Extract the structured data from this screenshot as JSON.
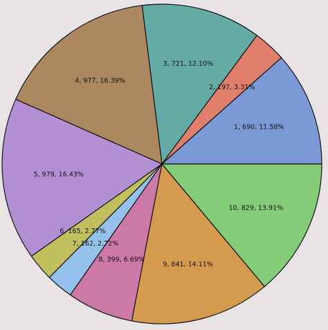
{
  "chart_data": {
    "type": "pie",
    "title": "",
    "slices": [
      {
        "id": 1,
        "value": 690,
        "percent": 11.58,
        "label": "1, 690, 11.58%",
        "color": "#7b99d4"
      },
      {
        "id": 2,
        "value": 197,
        "percent": 3.31,
        "label": "2, 197, 3.31%",
        "color": "#e07f6c"
      },
      {
        "id": 3,
        "value": 721,
        "percent": 12.1,
        "label": "3, 721, 12.10%",
        "color": "#66aaa6"
      },
      {
        "id": 4,
        "value": 977,
        "percent": 16.39,
        "label": "4, 977, 16.39%",
        "color": "#ab8860"
      },
      {
        "id": 5,
        "value": 979,
        "percent": 16.43,
        "label": "5, 979, 16.43%",
        "color": "#b38fd4"
      },
      {
        "id": 6,
        "value": 165,
        "percent": 2.77,
        "label": "6, 165, 2.77%",
        "color": "#c1c05e"
      },
      {
        "id": 7,
        "value": 162,
        "percent": 2.72,
        "label": "7, 162, 2.72%",
        "color": "#96c1ec"
      },
      {
        "id": 8,
        "value": 399,
        "percent": 6.69,
        "label": "8, 399, 6.69%",
        "color": "#cc79a7"
      },
      {
        "id": 9,
        "value": 841,
        "percent": 14.11,
        "label": "9, 841, 14.11%",
        "color": "#d49a4e"
      },
      {
        "id": 10,
        "value": 829,
        "percent": 13.91,
        "label": "10, 829, 13.91%",
        "color": "#85cc79"
      }
    ],
    "start_angle_deg": 0,
    "direction": "counterclockwise",
    "legend": "none",
    "grid": false
  }
}
